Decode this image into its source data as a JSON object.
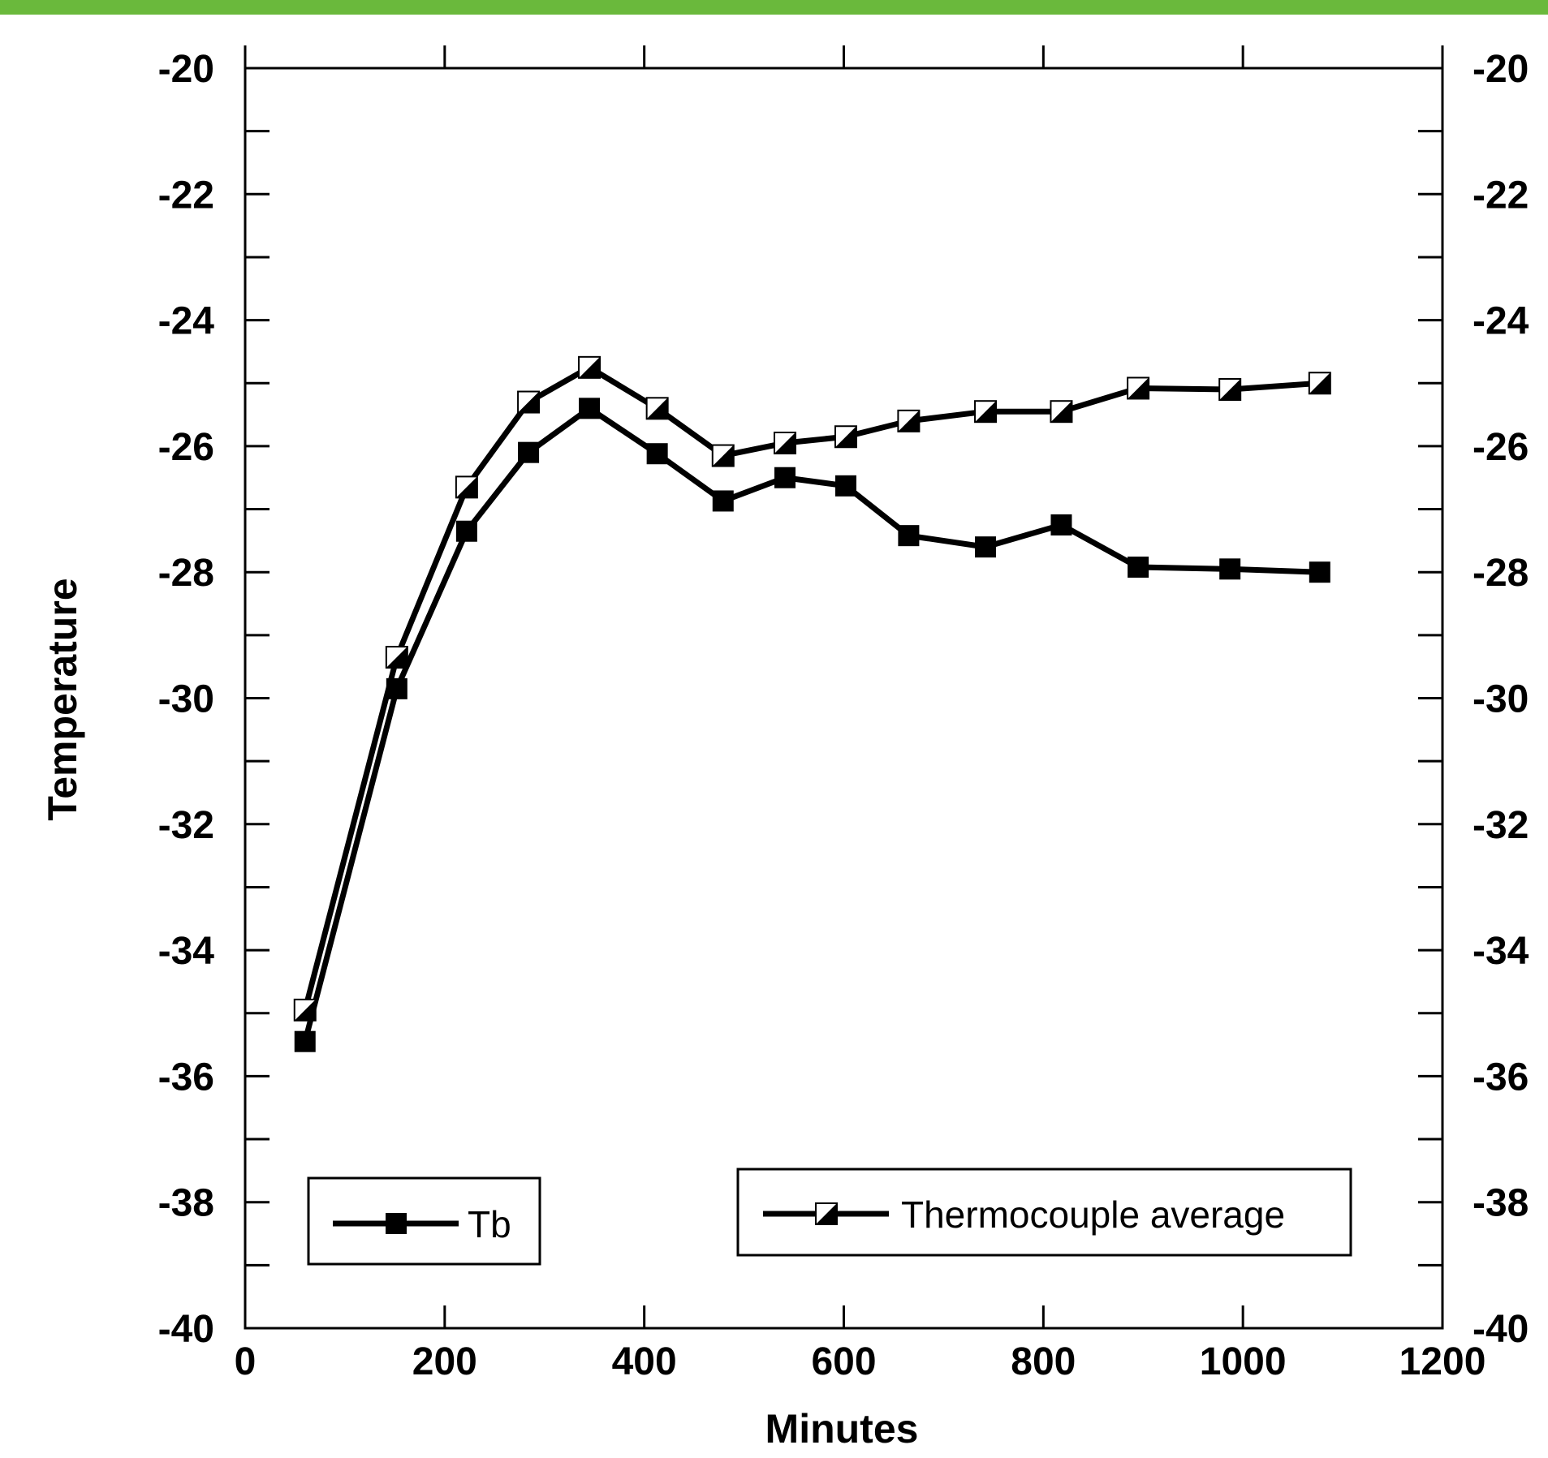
{
  "header": {
    "accent_color": "#6ab93c"
  },
  "chart_data": {
    "type": "line",
    "title": "",
    "xlabel": "Minutes",
    "ylabel": "Temperature",
    "xlim": [
      0,
      1200
    ],
    "ylim": [
      -40,
      -20
    ],
    "x_ticks": [
      "0",
      "200",
      "400",
      "600",
      "800",
      "1000",
      "1200"
    ],
    "y_ticks": [
      "-20",
      "-22",
      "-24",
      "-26",
      "-28",
      "-30",
      "-32",
      "-34",
      "-36",
      "-38",
      "-40"
    ],
    "right_axis_mirrored": true,
    "grid": false,
    "series": [
      {
        "name": "Tb",
        "marker": "filled-square",
        "color": "#000000",
        "x": [
          60,
          152,
          222,
          284,
          345,
          413,
          479,
          541,
          602,
          665,
          742,
          818,
          895,
          987,
          1077
        ],
        "y": [
          -35.45,
          -29.85,
          -27.35,
          -26.1,
          -25.4,
          -26.12,
          -26.87,
          -26.5,
          -26.63,
          -27.42,
          -27.6,
          -27.25,
          -27.92,
          -27.95,
          -28.0
        ]
      },
      {
        "name": "Thermocouple average",
        "marker": "half-filled-square",
        "color": "#000000",
        "x": [
          60,
          152,
          222,
          284,
          345,
          413,
          479,
          541,
          602,
          665,
          742,
          818,
          895,
          987,
          1077
        ],
        "y": [
          -34.95,
          -29.35,
          -26.65,
          -25.3,
          -24.75,
          -25.4,
          -26.15,
          -25.95,
          -25.85,
          -25.6,
          -25.45,
          -25.45,
          -25.08,
          -25.1,
          -25.0
        ]
      }
    ],
    "legends": [
      {
        "label": "Tb",
        "placement": "bottom-left"
      },
      {
        "label": "Thermocouple average",
        "placement": "bottom-right"
      }
    ]
  }
}
